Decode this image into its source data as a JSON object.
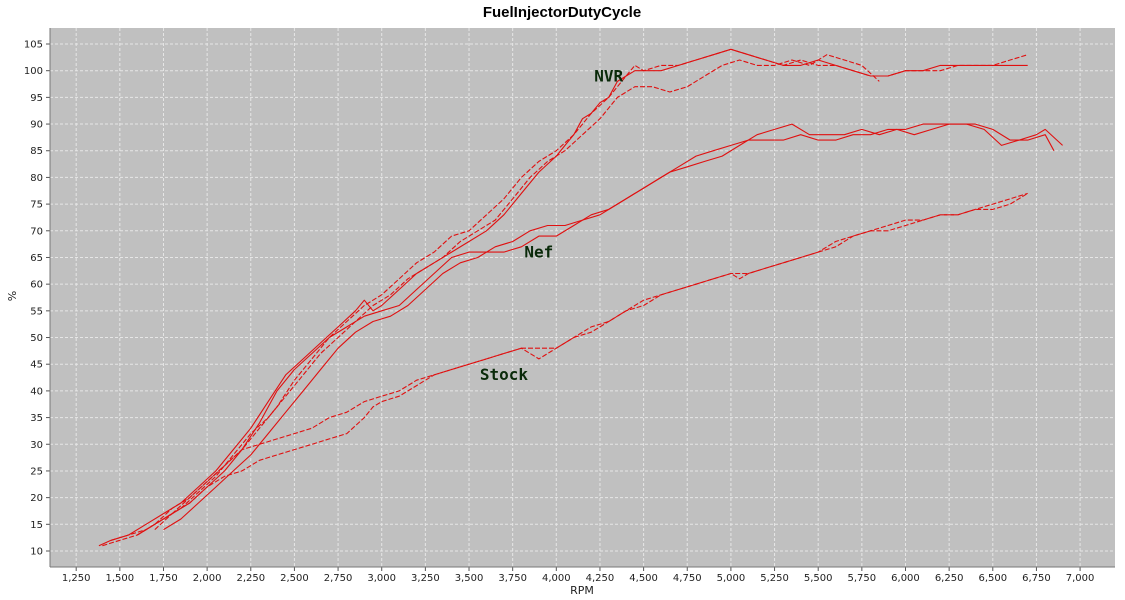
{
  "chart_data": {
    "type": "line",
    "title": "FuelInjectorDutyCycle",
    "xlabel": "RPM",
    "ylabel": "%",
    "xlim": [
      1100,
      7200
    ],
    "ylim": [
      7,
      108
    ],
    "x_ticks": [
      1250,
      1500,
      1750,
      2000,
      2250,
      2500,
      2750,
      3000,
      3250,
      3500,
      3750,
      4000,
      4250,
      4500,
      4750,
      5000,
      5250,
      5500,
      5750,
      6000,
      6250,
      6500,
      6750,
      7000
    ],
    "x_tick_labels": [
      "1,250",
      "1,500",
      "1,750",
      "2,000",
      "2,250",
      "2,500",
      "2,750",
      "3,000",
      "3,250",
      "3,500",
      "3,750",
      "4,000",
      "4,250",
      "4,500",
      "4,750",
      "5,000",
      "5,250",
      "5,500",
      "5,750",
      "6,000",
      "6,250",
      "6,500",
      "6,750",
      "7,000"
    ],
    "y_ticks": [
      10,
      15,
      20,
      25,
      30,
      35,
      40,
      45,
      50,
      55,
      60,
      65,
      70,
      75,
      80,
      85,
      90,
      95,
      100,
      105
    ],
    "y_tick_labels": [
      "10",
      "15",
      "20",
      "25",
      "30",
      "35",
      "40",
      "45",
      "50",
      "55",
      "60",
      "65",
      "70",
      "75",
      "80",
      "85",
      "90",
      "95",
      "100",
      "105"
    ],
    "grid": true,
    "plot_background": "#c0c0c0",
    "grid_color": "#e6e6e6",
    "line_color": "#e01010",
    "annotations": [
      {
        "text": "NVR",
        "x": 4300,
        "y": 98
      },
      {
        "text": "Nef",
        "x": 3900,
        "y": 65
      },
      {
        "text": "Stock",
        "x": 3700,
        "y": 42
      }
    ],
    "series": [
      {
        "style": "solid",
        "x": [
          1380,
          1450,
          1550,
          1650,
          1750,
          1850,
          1950,
          2050,
          2150,
          2250,
          2350,
          2450,
          2550,
          2650,
          2750,
          2850,
          2900,
          2950,
          3000,
          3100,
          3200,
          3300,
          3400,
          3500,
          3600,
          3700,
          3800,
          3900,
          4000,
          4050,
          4100,
          4150,
          4200,
          4250,
          4300,
          4350,
          4400,
          4450,
          4500,
          4600,
          4700,
          4800,
          4900,
          5000,
          5100,
          5200,
          5300,
          5400,
          5500,
          5600,
          5700,
          5800,
          5900,
          6000,
          6100,
          6200,
          6300,
          6400,
          6500,
          6600,
          6700
        ],
        "y": [
          11,
          12,
          13,
          15,
          17,
          19,
          22,
          25,
          29,
          33,
          38,
          43,
          46,
          49,
          52,
          55,
          57,
          55,
          56,
          59,
          62,
          64,
          66,
          68,
          70,
          73,
          77,
          81,
          84,
          86,
          88,
          91,
          92,
          94,
          95,
          98,
          99,
          100,
          100,
          100,
          101,
          102,
          103,
          104,
          103,
          102,
          101,
          101,
          102,
          101,
          100,
          99,
          99,
          100,
          100,
          101,
          101,
          101,
          101,
          101,
          101
        ]
      },
      {
        "style": "dashed",
        "x": [
          1400,
          1500,
          1600,
          1700,
          1800,
          1900,
          2000,
          2100,
          2200,
          2300,
          2400,
          2500,
          2600,
          2700,
          2800,
          2900,
          3000,
          3100,
          3200,
          3300,
          3400,
          3500,
          3600,
          3700,
          3800,
          3900,
          4000,
          4100,
          4200,
          4300,
          4400,
          4450,
          4500,
          4600,
          4700,
          4800,
          4900,
          5000,
          5100,
          5200,
          5300,
          5400,
          5500,
          5600,
          5700,
          5800,
          5900,
          6000,
          6100,
          6200,
          6300,
          6400,
          6500,
          6600,
          6700
        ],
        "y": [
          11,
          12,
          13,
          15,
          17,
          20,
          23,
          26,
          29,
          33,
          37,
          42,
          46,
          50,
          53,
          56,
          58,
          61,
          64,
          66,
          69,
          70,
          73,
          76,
          80,
          83,
          85,
          88,
          92,
          95,
          99,
          101,
          100,
          101,
          101,
          102,
          103,
          104,
          103,
          102,
          101,
          102,
          101,
          101,
          100,
          99,
          99,
          100,
          100,
          100,
          101,
          101,
          101,
          102,
          103
        ]
      },
      {
        "style": "dashed",
        "x": [
          1450,
          1550,
          1650,
          1750,
          1850,
          1950,
          2050,
          2150,
          2250,
          2350,
          2450,
          2550,
          2650,
          2750,
          2850,
          2950,
          3050,
          3150,
          3250,
          3350,
          3450,
          3550,
          3650,
          3750,
          3850,
          3950,
          4050,
          4150,
          4250,
          4350,
          4450,
          4550,
          4650,
          4750,
          4850,
          4950,
          5050,
          5150,
          5250,
          5350,
          5450,
          5550,
          5650,
          5750,
          5850
        ],
        "y": [
          12,
          13,
          14,
          16,
          18,
          21,
          24,
          28,
          32,
          35,
          39,
          43,
          47,
          50,
          53,
          56,
          58,
          61,
          63,
          65,
          68,
          70,
          72,
          76,
          80,
          83,
          85,
          88,
          91,
          95,
          97,
          97,
          96,
          97,
          99,
          101,
          102,
          101,
          101,
          102,
          101,
          103,
          102,
          101,
          98
        ]
      },
      {
        "style": "solid",
        "x": [
          1600,
          1700,
          1800,
          1900,
          2000,
          2100,
          2200,
          2300,
          2400,
          2500,
          2600,
          2700,
          2800,
          2900,
          3000,
          3100,
          3200,
          3300,
          3400,
          3500,
          3600,
          3700,
          3800,
          3900,
          4000,
          4100,
          4200,
          4300,
          4400,
          4500,
          4600,
          4700,
          4800,
          4900,
          5000,
          5100,
          5200,
          5300,
          5400,
          5500,
          5600,
          5700,
          5800,
          5900,
          6000,
          6100,
          6200,
          6300,
          6400,
          6500,
          6600,
          6700,
          6800,
          6850
        ],
        "y": [
          13,
          15,
          17,
          19,
          22,
          25,
          29,
          34,
          40,
          44,
          47,
          50,
          52,
          54,
          55,
          56,
          59,
          62,
          65,
          66,
          66,
          66,
          67,
          69,
          69,
          71,
          73,
          74,
          76,
          78,
          80,
          82,
          84,
          85,
          86,
          87,
          87,
          87,
          88,
          87,
          87,
          88,
          88,
          89,
          89,
          90,
          90,
          90,
          90,
          89,
          87,
          87,
          88,
          85
        ]
      },
      {
        "style": "solid",
        "x": [
          1750,
          1850,
          1950,
          2050,
          2150,
          2250,
          2350,
          2450,
          2550,
          2650,
          2750,
          2850,
          2950,
          3050,
          3150,
          3250,
          3350,
          3450,
          3550,
          3650,
          3750,
          3850,
          3950,
          4050,
          4150,
          4250,
          4350,
          4450,
          4550,
          4650,
          4750,
          4850,
          4950,
          5050,
          5150,
          5250,
          5350,
          5450,
          5550,
          5650,
          5750,
          5850,
          5950,
          6050,
          6150,
          6250,
          6350,
          6450,
          6550,
          6650,
          6750,
          6800,
          6900
        ],
        "y": [
          14,
          16,
          19,
          22,
          25,
          28,
          32,
          36,
          40,
          44,
          48,
          51,
          53,
          54,
          56,
          59,
          62,
          64,
          65,
          67,
          68,
          70,
          71,
          71,
          72,
          73,
          75,
          77,
          79,
          81,
          82,
          83,
          84,
          86,
          88,
          89,
          90,
          88,
          88,
          88,
          89,
          88,
          89,
          88,
          89,
          90,
          90,
          89,
          86,
          87,
          88,
          89,
          86
        ]
      },
      {
        "style": "dashed",
        "x": [
          1600,
          1700,
          1800,
          1900,
          2000,
          2100,
          2200,
          2300,
          2400,
          2500,
          2600,
          2700,
          2800,
          2900,
          3000,
          3100,
          3200,
          3300,
          3400,
          3500,
          3600,
          3700,
          3800,
          3900,
          4000,
          4100,
          4200,
          4300,
          4400,
          4500,
          4600,
          4700,
          4800,
          4900,
          5000,
          5100,
          5200,
          5300,
          5400,
          5500,
          5600,
          5700,
          5800,
          5900,
          6000,
          6100,
          6200,
          6300,
          6400,
          6500,
          6600,
          6700
        ],
        "y": [
          13,
          15,
          18,
          20,
          23,
          26,
          29,
          30,
          31,
          32,
          33,
          35,
          36,
          38,
          39,
          40,
          42,
          43,
          44,
          45,
          46,
          47,
          48,
          48,
          48,
          50,
          51,
          53,
          55,
          56,
          58,
          59,
          60,
          61,
          62,
          62,
          63,
          64,
          65,
          66,
          68,
          69,
          70,
          71,
          72,
          72,
          73,
          73,
          74,
          74,
          75,
          77
        ]
      },
      {
        "style": "dashed",
        "x": [
          1700,
          1800,
          1900,
          2000,
          2100,
          2200,
          2300,
          2400,
          2500,
          2600,
          2700,
          2800,
          2900,
          2950,
          3000,
          3100,
          3200,
          3300,
          3400,
          3500,
          3600,
          3700,
          3800,
          3850,
          3900,
          4000,
          4100,
          4200,
          4300,
          4400,
          4500,
          4600,
          4700,
          4800,
          4900,
          5000,
          5050,
          5100,
          5200,
          5300,
          5400,
          5500,
          5600,
          5700,
          5800,
          5900,
          6000,
          6100,
          6200,
          6300,
          6400,
          6500,
          6600,
          6700
        ],
        "y": [
          14,
          17,
          19,
          22,
          24,
          25,
          27,
          28,
          29,
          30,
          31,
          32,
          35,
          37,
          38,
          39,
          41,
          43,
          44,
          45,
          46,
          47,
          48,
          47,
          46,
          48,
          50,
          52,
          53,
          55,
          57,
          58,
          59,
          60,
          61,
          62,
          61,
          62,
          63,
          64,
          65,
          66,
          67,
          69,
          70,
          70,
          71,
          72,
          73,
          73,
          74,
          75,
          76,
          77
        ]
      }
    ]
  }
}
